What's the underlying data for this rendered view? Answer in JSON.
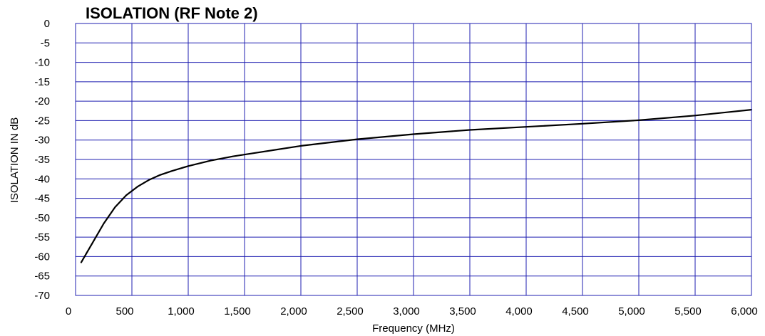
{
  "chart_data": {
    "type": "line",
    "title": "ISOLATION (RF Note 2)",
    "xlabel": "Frequency (MHz)",
    "ylabel": "ISOLATION IN dB",
    "xlim": [
      0,
      6000
    ],
    "ylim": [
      -70,
      0
    ],
    "grid": true,
    "colors": {
      "grid": "#1f1fb0",
      "line": "#000000",
      "border": "#1f1fb0"
    },
    "x_ticks": [
      {
        "value": 0,
        "label": "0"
      },
      {
        "value": 500,
        "label": "500"
      },
      {
        "value": 1000,
        "label": "1,000"
      },
      {
        "value": 1500,
        "label": "1,500"
      },
      {
        "value": 2000,
        "label": "2,000"
      },
      {
        "value": 2500,
        "label": "2,500"
      },
      {
        "value": 3000,
        "label": "3,000"
      },
      {
        "value": 3500,
        "label": "3,500"
      },
      {
        "value": 4000,
        "label": "4,000"
      },
      {
        "value": 4500,
        "label": "4,500"
      },
      {
        "value": 5000,
        "label": "5,000"
      },
      {
        "value": 5500,
        "label": "5,500"
      },
      {
        "value": 6000,
        "label": "6,000"
      }
    ],
    "y_ticks": [
      {
        "value": 0,
        "label": "0"
      },
      {
        "value": -5,
        "label": "-5"
      },
      {
        "value": -10,
        "label": "-10"
      },
      {
        "value": -15,
        "label": "-15"
      },
      {
        "value": -20,
        "label": "-20"
      },
      {
        "value": -25,
        "label": "-25"
      },
      {
        "value": -30,
        "label": "-30"
      },
      {
        "value": -35,
        "label": "-35"
      },
      {
        "value": -40,
        "label": "-40"
      },
      {
        "value": -45,
        "label": "-45"
      },
      {
        "value": -50,
        "label": "-50"
      },
      {
        "value": -55,
        "label": "-55"
      },
      {
        "value": -60,
        "label": "-60"
      },
      {
        "value": -65,
        "label": "-65"
      },
      {
        "value": -70,
        "label": "-70"
      }
    ],
    "series": [
      {
        "x": [
          50,
          150,
          250,
          350,
          450,
          550,
          650,
          750,
          850,
          1000,
          1200,
          1400,
          1600,
          2000,
          2500,
          3000,
          3500,
          4000,
          4500,
          5000,
          5500,
          6000
        ],
        "y": [
          -61.5,
          -56.5,
          -51.5,
          -47.3,
          -44.2,
          -42,
          -40.3,
          -39,
          -38,
          -36.7,
          -35.3,
          -34.2,
          -33.3,
          -31.5,
          -29.8,
          -28.5,
          -27.4,
          -26.6,
          -25.8,
          -24.9,
          -23.7,
          -22.2
        ]
      }
    ]
  }
}
